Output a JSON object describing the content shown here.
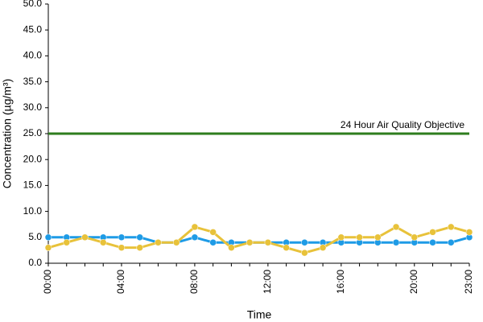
{
  "chart_data": {
    "type": "line",
    "x_label": "Time",
    "y_label": "Concentration (µg/m³)",
    "categories": [
      "00:00",
      null,
      null,
      null,
      "04:00",
      null,
      null,
      null,
      "08:00",
      null,
      null,
      null,
      "12:00",
      null,
      null,
      null,
      "16:00",
      null,
      null,
      null,
      "20:00",
      null,
      null,
      "23:00"
    ],
    "series": [
      {
        "color": "#1e9be6",
        "values": [
          5,
          5,
          5,
          5,
          5,
          5,
          4,
          4,
          5,
          4,
          4,
          4,
          4,
          4,
          4,
          4,
          4,
          4,
          4,
          4,
          4,
          4,
          4,
          5
        ]
      },
      {
        "color": "#e8c23a",
        "values": [
          3,
          4,
          5,
          4,
          3,
          3,
          4,
          4,
          7,
          6,
          3,
          4,
          4,
          3,
          2,
          3,
          5,
          5,
          5,
          7,
          5,
          6,
          7,
          6
        ]
      }
    ],
    "reference_line": {
      "value": 25,
      "label": "24 Hour Air Quality Objective",
      "color": "#2e7d1e"
    },
    "ylim": [
      0,
      50
    ],
    "yticks": [
      {
        "value": 0,
        "label": "0.0"
      },
      {
        "value": 5,
        "label": "5.0"
      },
      {
        "value": 10,
        "label": "10.0"
      },
      {
        "value": 15,
        "label": "15.0"
      },
      {
        "value": 20,
        "label": "20.0"
      },
      {
        "value": 25,
        "label": "25.0"
      },
      {
        "value": 30,
        "label": "30.0"
      },
      {
        "value": 35,
        "label": "35.0"
      },
      {
        "value": 40,
        "label": "40.0"
      },
      {
        "value": 45,
        "label": "45.0"
      },
      {
        "value": 50,
        "label": "50.0"
      }
    ]
  }
}
